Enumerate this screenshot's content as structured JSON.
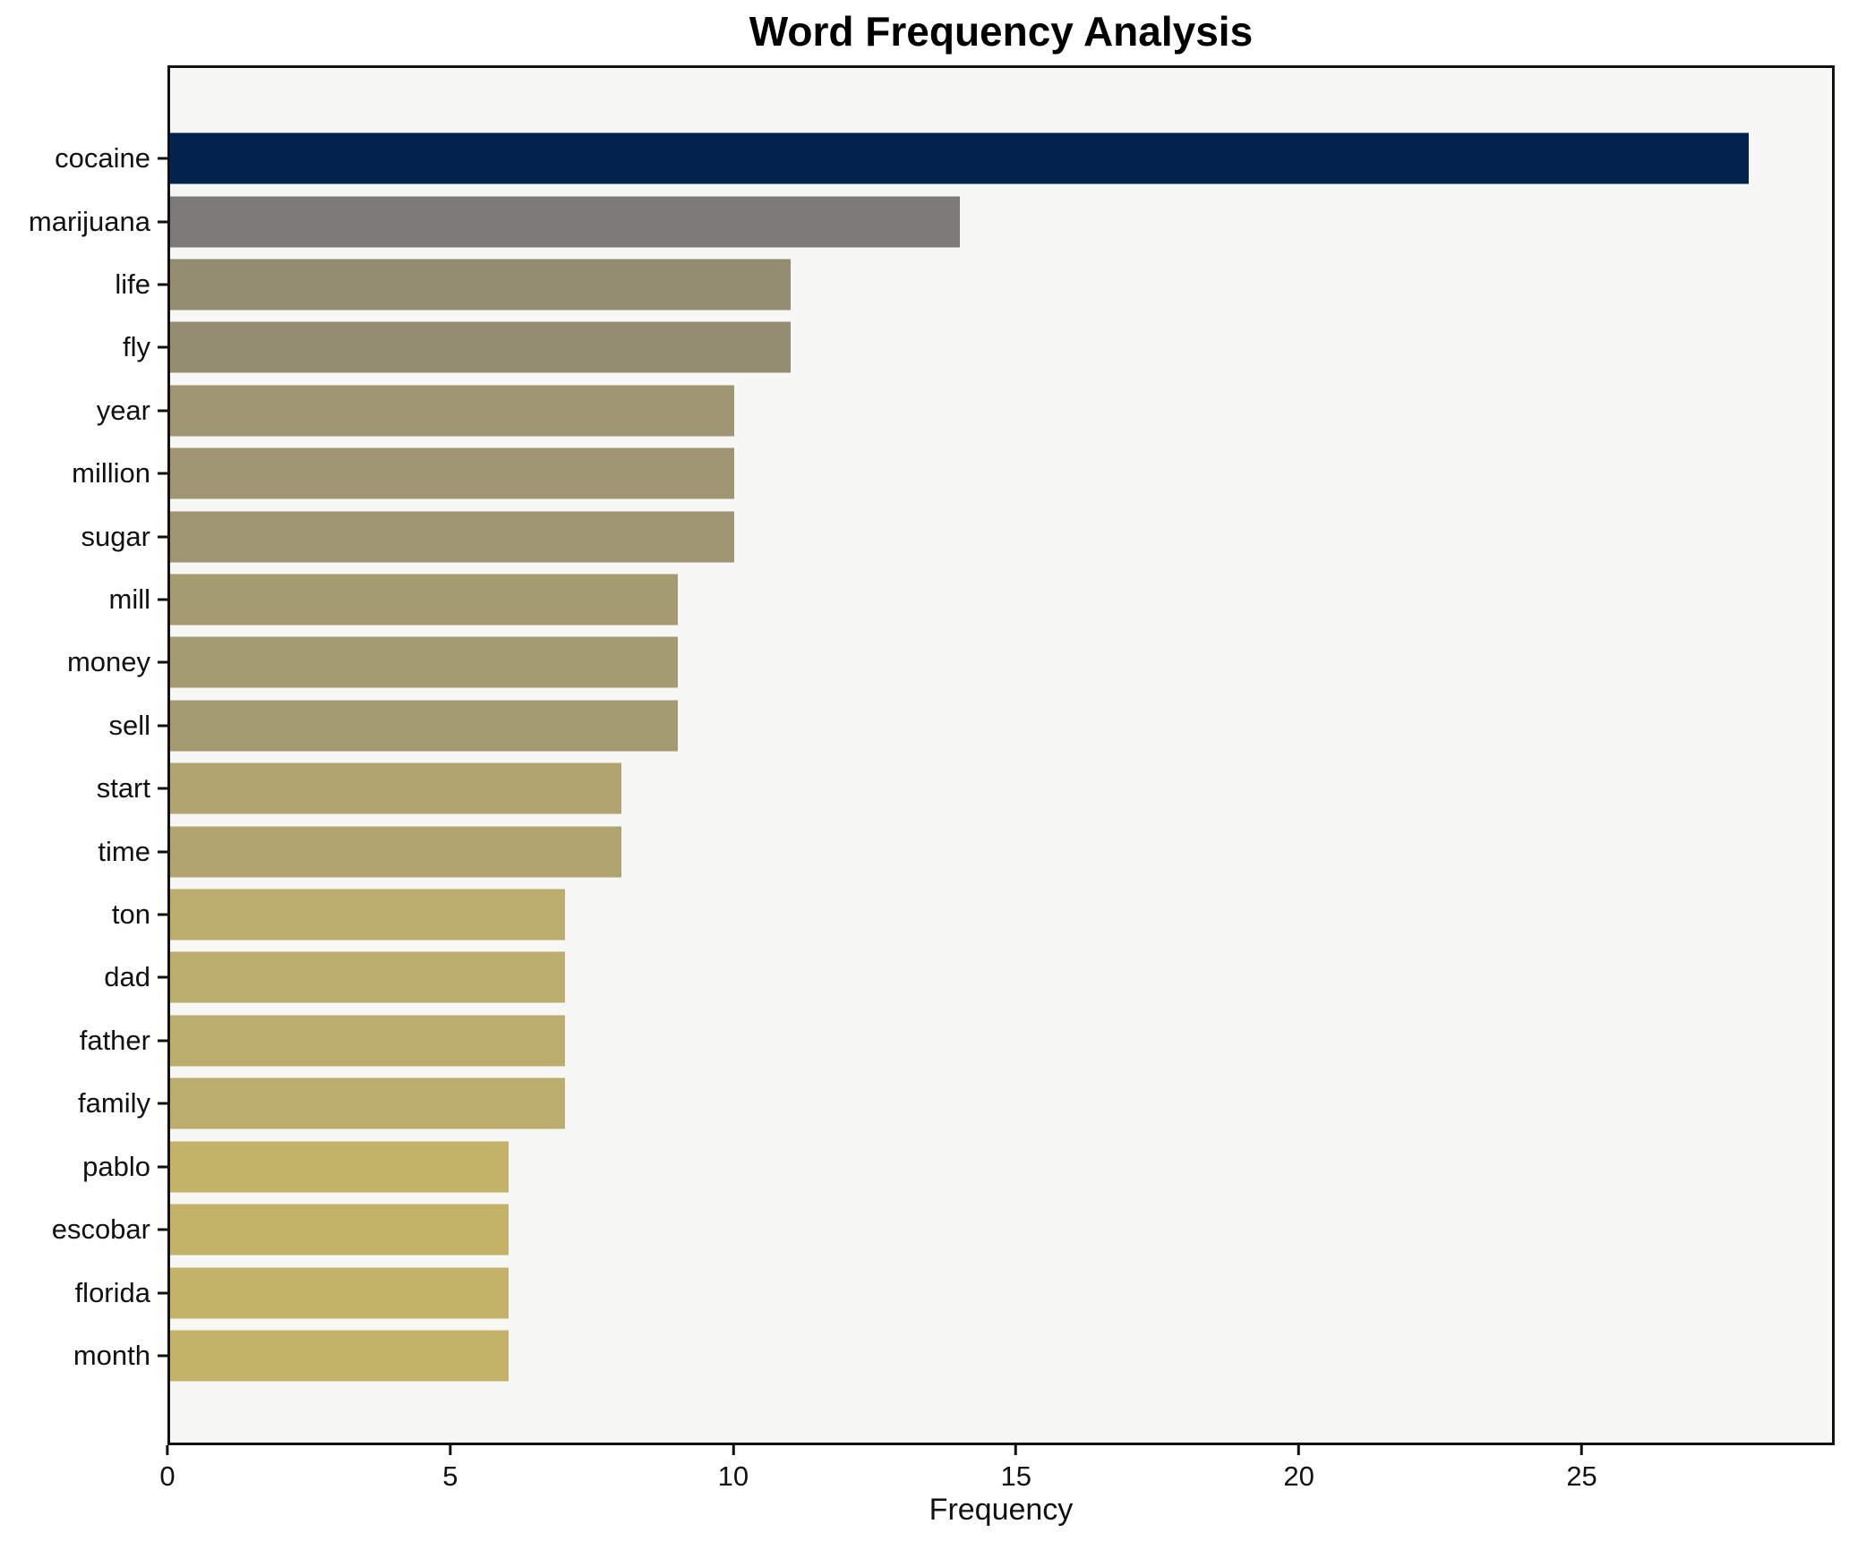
{
  "chart_data": {
    "type": "bar",
    "orientation": "horizontal",
    "title": "Word Frequency Analysis",
    "xlabel": "Frequency",
    "ylabel": "",
    "categories": [
      "cocaine",
      "marijuana",
      "life",
      "fly",
      "year",
      "million",
      "sugar",
      "mill",
      "money",
      "sell",
      "start",
      "time",
      "ton",
      "dad",
      "father",
      "family",
      "pablo",
      "escobar",
      "florida",
      "month"
    ],
    "values": [
      28,
      14,
      11,
      11,
      10,
      10,
      10,
      9,
      9,
      9,
      8,
      8,
      7,
      7,
      7,
      7,
      6,
      6,
      6,
      6
    ],
    "bar_colors": [
      "#02234e",
      "#7c7b78",
      "#948d72",
      "#948d72",
      "#9e9672",
      "#9e9672",
      "#9e9672",
      "#a59b71",
      "#a59b71",
      "#a59b71",
      "#b0a56f",
      "#b0a56f",
      "#bbad6c",
      "#bbad6c",
      "#bbad6c",
      "#bbad6c",
      "#c3b368",
      "#c3b368",
      "#c3b368",
      "#c3b368"
    ],
    "xlim": [
      0,
      29.47
    ],
    "xticks": [
      0,
      5,
      10,
      15,
      20,
      25
    ],
    "grid": false,
    "legend": false,
    "colormap": "cividis",
    "plot_background": "#f7f7f5",
    "figure_background": "#ffffff",
    "spine_color": "#111111"
  }
}
